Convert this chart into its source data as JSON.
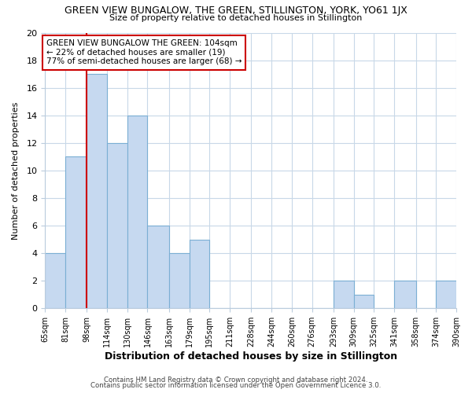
{
  "title": "GREEN VIEW BUNGALOW, THE GREEN, STILLINGTON, YORK, YO61 1JX",
  "subtitle": "Size of property relative to detached houses in Stillington",
  "xlabel": "Distribution of detached houses by size in Stillington",
  "ylabel": "Number of detached properties",
  "footer_lines": [
    "Contains HM Land Registry data © Crown copyright and database right 2024.",
    "Contains public sector information licensed under the Open Government Licence 3.0."
  ],
  "bar_edges": [
    65,
    81,
    98,
    114,
    130,
    146,
    163,
    179,
    195,
    211,
    228,
    244,
    260,
    276,
    293,
    309,
    325,
    341,
    358,
    374,
    390
  ],
  "bar_heights": [
    4,
    11,
    17,
    12,
    14,
    6,
    4,
    5,
    0,
    0,
    0,
    0,
    0,
    0,
    2,
    1,
    0,
    2,
    0,
    2
  ],
  "bar_color": "#c6d9f0",
  "bar_edgecolor": "#7bafd4",
  "reference_line_x": 98,
  "reference_line_color": "#cc0000",
  "ylim": [
    0,
    20
  ],
  "yticks": [
    0,
    2,
    4,
    6,
    8,
    10,
    12,
    14,
    16,
    18,
    20
  ],
  "annotation_text": "GREEN VIEW BUNGALOW THE GREEN: 104sqm\n← 22% of detached houses are smaller (19)\n77% of semi-detached houses are larger (68) →",
  "annotation_box_edgecolor": "#cc0000",
  "tick_labels": [
    "65sqm",
    "81sqm",
    "98sqm",
    "114sqm",
    "130sqm",
    "146sqm",
    "163sqm",
    "179sqm",
    "195sqm",
    "211sqm",
    "228sqm",
    "244sqm",
    "260sqm",
    "276sqm",
    "293sqm",
    "309sqm",
    "325sqm",
    "341sqm",
    "358sqm",
    "374sqm",
    "390sqm"
  ],
  "background_color": "#ffffff",
  "grid_color": "#c8d8e8"
}
